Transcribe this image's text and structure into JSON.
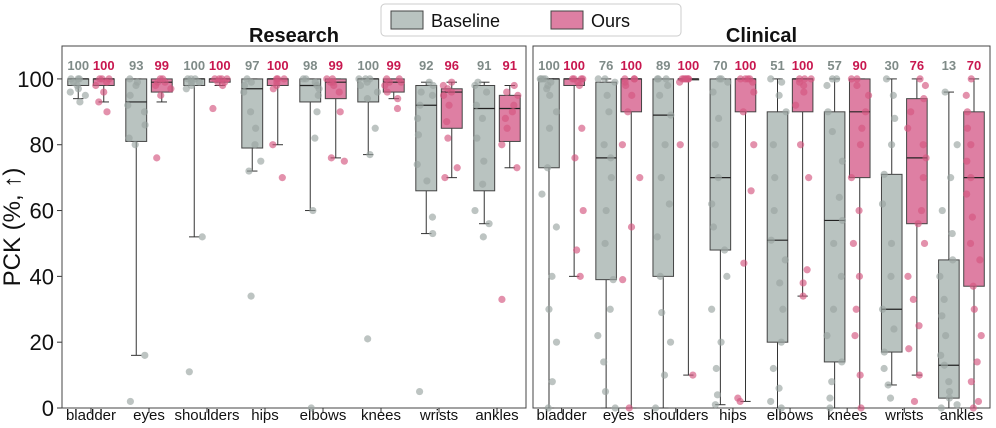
{
  "chart_data": {
    "type": "box",
    "ylabel": "PCK (%, ↑)",
    "ylim": [
      0,
      110
    ],
    "yticks": [
      0,
      20,
      40,
      60,
      80,
      100
    ],
    "legend": {
      "position": "top-center",
      "entries": [
        {
          "name": "Baseline",
          "color": "#b9c3c0"
        },
        {
          "name": "Ours",
          "color": "#de7fa3"
        }
      ]
    },
    "colors": {
      "baseline_fill": "#b9c3c0",
      "baseline_dot": "#9aa5a2",
      "baseline_label": "#7f8b88",
      "ours_fill": "#de7fa3",
      "ours_dot": "#d4567f",
      "ours_label": "#c8174f"
    },
    "categories": [
      "bladder",
      "eyes",
      "shoulders",
      "hips",
      "elbows",
      "knees",
      "wrists",
      "ankles"
    ],
    "panels": [
      {
        "title": "Research",
        "series": {
          "Baseline": {
            "medians": [
              100,
              93,
              100,
              97,
              98,
              100,
              92,
              91
            ],
            "boxes": [
              {
                "q1": 98,
                "q3": 100,
                "wlo": 94,
                "whi": 100
              },
              {
                "q1": 81,
                "q3": 100,
                "wlo": 16,
                "whi": 100
              },
              {
                "q1": 98,
                "q3": 100,
                "wlo": 52,
                "whi": 100
              },
              {
                "q1": 79,
                "q3": 100,
                "wlo": 72,
                "whi": 100
              },
              {
                "q1": 93,
                "q3": 100,
                "wlo": 60,
                "whi": 100
              },
              {
                "q1": 93,
                "q3": 100,
                "wlo": 77,
                "whi": 100
              },
              {
                "q1": 66,
                "q3": 98,
                "wlo": 53,
                "whi": 99
              },
              {
                "q1": 66,
                "q3": 98,
                "wlo": 56,
                "whi": 99
              }
            ],
            "points": [
              [
                100,
                100,
                100,
                99,
                98,
                97,
                96,
                95,
                93
              ],
              [
                100,
                99,
                98,
                95,
                92,
                90,
                86,
                82,
                80,
                16,
                2
              ],
              [
                100,
                100,
                100,
                99,
                99,
                98,
                97,
                52,
                11
              ],
              [
                100,
                99,
                98,
                96,
                90,
                85,
                80,
                75,
                72,
                34
              ],
              [
                100,
                100,
                99,
                98,
                97,
                95,
                90,
                82,
                60,
                0
              ],
              [
                100,
                100,
                100,
                99,
                98,
                96,
                94,
                85,
                77,
                21
              ],
              [
                99,
                98,
                96,
                95,
                92,
                88,
                83,
                74,
                69,
                58,
                53,
                5
              ],
              [
                99,
                98,
                96,
                92,
                88,
                82,
                75,
                68,
                60,
                56,
                52
              ]
            ]
          },
          "Ours": {
            "medians": [
              100,
              99,
              100,
              100,
              99,
              99,
              96,
              91
            ],
            "boxes": [
              {
                "q1": 98,
                "q3": 100,
                "wlo": 93,
                "whi": 100
              },
              {
                "q1": 96,
                "q3": 100,
                "wlo": 93,
                "whi": 100
              },
              {
                "q1": 99,
                "q3": 100,
                "wlo": 98,
                "whi": 100
              },
              {
                "q1": 98,
                "q3": 100,
                "wlo": 80,
                "whi": 100
              },
              {
                "q1": 94,
                "q3": 100,
                "wlo": 76,
                "whi": 100
              },
              {
                "q1": 96,
                "q3": 100,
                "wlo": 94,
                "whi": 100
              },
              {
                "q1": 85,
                "q3": 97,
                "wlo": 70,
                "whi": 99
              },
              {
                "q1": 81,
                "q3": 95,
                "wlo": 73,
                "whi": 98
              }
            ],
            "points": [
              [
                100,
                100,
                100,
                99,
                98,
                96,
                93,
                90
              ],
              [
                100,
                100,
                99,
                99,
                98,
                97,
                95,
                76
              ],
              [
                100,
                100,
                100,
                100,
                99,
                99,
                98,
                91
              ],
              [
                100,
                100,
                100,
                99,
                98,
                97,
                80,
                70
              ],
              [
                100,
                100,
                99,
                99,
                98,
                96,
                90,
                76,
                75
              ],
              [
                100,
                100,
                99,
                99,
                98,
                96,
                94,
                91
              ],
              [
                99,
                98,
                97,
                96,
                95,
                92,
                87,
                82,
                73,
                70
              ],
              [
                98,
                96,
                95,
                92,
                90,
                88,
                85,
                80,
                73,
                33
              ]
            ]
          }
        }
      },
      {
        "title": "Clinical",
        "series": {
          "Baseline": {
            "medians": [
              100,
              76,
              89,
              70,
              51,
              57,
              30,
              13
            ],
            "boxes": [
              {
                "q1": 73,
                "q3": 100,
                "wlo": 0,
                "whi": 100
              },
              {
                "q1": 39,
                "q3": 99,
                "wlo": 0,
                "whi": 100
              },
              {
                "q1": 40,
                "q3": 100,
                "wlo": 0,
                "whi": 100
              },
              {
                "q1": 48,
                "q3": 100,
                "wlo": 1,
                "whi": 100
              },
              {
                "q1": 20,
                "q3": 90,
                "wlo": 0,
                "whi": 100
              },
              {
                "q1": 14,
                "q3": 90,
                "wlo": 0,
                "whi": 100
              },
              {
                "q1": 17,
                "q3": 71,
                "wlo": 7,
                "whi": 100
              },
              {
                "q1": 3,
                "q3": 45,
                "wlo": 0,
                "whi": 96
              }
            ],
            "points": [
              [
                100,
                100,
                100,
                100,
                99,
                98,
                97,
                95,
                90,
                85,
                73,
                65,
                55,
                40,
                30,
                20,
                8,
                0
              ],
              [
                100,
                100,
                99,
                95,
                90,
                80,
                76,
                70,
                60,
                50,
                39,
                30,
                22,
                14,
                5,
                0
              ],
              [
                100,
                100,
                100,
                98,
                95,
                89,
                80,
                70,
                62,
                52,
                40,
                29,
                20,
                10,
                0
              ],
              [
                100,
                100,
                99,
                96,
                88,
                80,
                70,
                62,
                55,
                48,
                40,
                30,
                20,
                12,
                4,
                1
              ],
              [
                100,
                99,
                95,
                90,
                80,
                70,
                60,
                51,
                45,
                38,
                30,
                20,
                12,
                6,
                2,
                0
              ],
              [
                100,
                100,
                98,
                90,
                84,
                75,
                64,
                57,
                50,
                40,
                30,
                22,
                14,
                8,
                3,
                0
              ],
              [
                100,
                95,
                88,
                80,
                71,
                62,
                50,
                40,
                30,
                24,
                17,
                12,
                7,
                3
              ],
              [
                96,
                80,
                70,
                60,
                53,
                45,
                40,
                33,
                28,
                22,
                16,
                13,
                8,
                5,
                3,
                1,
                0
              ]
            ]
          },
          "Ours": {
            "medians": [
              100,
              100,
              100,
              100,
              100,
              90,
              76,
              70
            ],
            "boxes": [
              {
                "q1": 98,
                "q3": 100,
                "wlo": 40,
                "whi": 100
              },
              {
                "q1": 90,
                "q3": 100,
                "wlo": 0,
                "whi": 100
              },
              {
                "q1": 100,
                "q3": 100,
                "wlo": 10,
                "whi": 100
              },
              {
                "q1": 90,
                "q3": 100,
                "wlo": 2,
                "whi": 100
              },
              {
                "q1": 90,
                "q3": 100,
                "wlo": 34,
                "whi": 100
              },
              {
                "q1": 70,
                "q3": 100,
                "wlo": 0,
                "whi": 100
              },
              {
                "q1": 56,
                "q3": 94,
                "wlo": 10,
                "whi": 100
              },
              {
                "q1": 37,
                "q3": 90,
                "wlo": 0,
                "whi": 100
              }
            ],
            "points": [
              [
                100,
                100,
                100,
                100,
                99,
                98,
                85,
                76,
                60,
                48,
                40
              ],
              [
                100,
                100,
                100,
                99,
                98,
                95,
                90,
                80,
                70,
                55,
                39,
                0
              ],
              [
                100,
                100,
                100,
                100,
                100,
                100,
                99,
                80,
                10
              ],
              [
                100,
                100,
                100,
                100,
                99,
                96,
                90,
                80,
                66,
                44,
                3,
                2
              ],
              [
                100,
                100,
                100,
                99,
                98,
                96,
                92,
                80,
                70,
                42,
                38,
                34
              ],
              [
                100,
                100,
                98,
                95,
                90,
                85,
                80,
                70,
                60,
                50,
                40,
                30,
                22,
                10,
                0
              ],
              [
                100,
                98,
                94,
                90,
                85,
                80,
                76,
                70,
                60,
                56,
                50,
                40,
                33,
                25,
                18,
                10,
                2
              ],
              [
                100,
                95,
                90,
                85,
                80,
                75,
                70,
                65,
                58,
                50,
                45,
                37,
                30,
                22,
                14,
                8,
                2,
                0
              ]
            ]
          }
        }
      }
    ]
  }
}
